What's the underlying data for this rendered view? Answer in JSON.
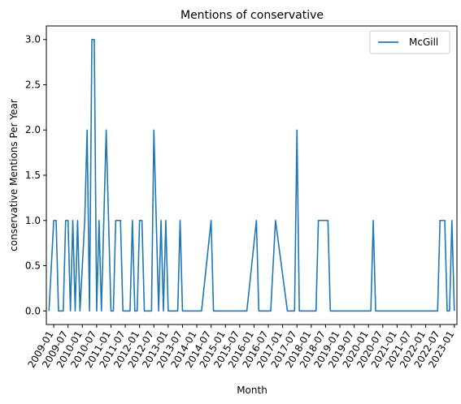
{
  "chart_data": {
    "type": "line",
    "title": "Mentions of conservative",
    "xlabel": "Month",
    "ylabel": "conservative Mentions Per Year",
    "ylim": [
      -0.15,
      3.15
    ],
    "yticks": [
      "0.0",
      "0.5",
      "1.0",
      "1.5",
      "2.0",
      "2.5",
      "3.0"
    ],
    "xticks": [
      "2009-01",
      "2009-07",
      "2010-01",
      "2010-07",
      "2011-01",
      "2011-07",
      "2012-01",
      "2012-07",
      "2013-01",
      "2013-07",
      "2014-01",
      "2014-07",
      "2015-01",
      "2015-07",
      "2016-01",
      "2016-07",
      "2017-01",
      "2017-07",
      "2018-01",
      "2018-07",
      "2019-01",
      "2019-07",
      "2020-01",
      "2020-07",
      "2021-01",
      "2021-07",
      "2022-01",
      "2022-07",
      "2023-01"
    ],
    "grid": false,
    "legend_position": "top-right",
    "series": [
      {
        "name": "McGill",
        "color": "#1f77b4",
        "x": [
          "2008-11",
          "2009-01",
          "2009-02",
          "2009-03",
          "2009-05",
          "2009-06",
          "2009-07",
          "2009-08",
          "2009-09",
          "2009-10",
          "2009-11",
          "2009-12",
          "2010-02",
          "2010-03",
          "2010-04",
          "2010-05",
          "2010-06",
          "2010-07",
          "2010-08",
          "2010-09",
          "2010-10",
          "2010-11",
          "2010-12",
          "2011-01",
          "2011-02",
          "2011-03",
          "2011-05",
          "2011-06",
          "2011-07",
          "2011-08",
          "2011-09",
          "2011-10",
          "2011-11",
          "2011-12",
          "2012-01",
          "2012-02",
          "2012-03",
          "2012-04",
          "2012-05",
          "2012-06",
          "2012-07",
          "2012-08",
          "2012-09",
          "2012-10",
          "2012-11",
          "2012-12",
          "2013-01",
          "2013-02",
          "2013-03",
          "2013-04",
          "2013-05",
          "2013-06",
          "2013-07",
          "2013-08",
          "2013-09",
          "2013-10",
          "2013-11",
          "2013-12",
          "2014-01",
          "2014-02",
          "2014-03",
          "2014-07",
          "2014-08",
          "2014-09",
          "2014-10",
          "2014-11",
          "2015-10",
          "2016-02",
          "2016-03",
          "2016-04",
          "2016-05",
          "2016-06",
          "2016-07",
          "2016-08",
          "2016-10",
          "2017-03",
          "2017-04",
          "2017-05",
          "2017-06",
          "2017-07",
          "2017-08",
          "2017-09",
          "2017-10",
          "2017-11",
          "2018-01",
          "2018-02",
          "2018-03",
          "2018-04",
          "2018-08",
          "2018-09",
          "2020-02",
          "2020-03",
          "2020-04",
          "2020-05",
          "2022-06",
          "2022-07",
          "2022-09",
          "2022-10",
          "2022-11",
          "2022-12",
          "2023-01"
        ],
        "y": [
          0,
          1,
          1,
          0,
          0,
          1,
          1,
          0,
          1,
          0,
          1,
          0,
          1,
          2,
          0,
          3,
          3,
          0,
          1,
          0,
          1,
          2,
          1,
          0,
          0,
          1,
          1,
          0,
          0,
          0,
          0,
          1,
          0,
          0,
          1,
          1,
          0,
          0,
          0,
          0,
          2,
          1,
          0,
          1,
          0,
          1,
          0,
          0,
          0,
          0,
          0,
          1,
          0,
          0,
          0,
          0,
          0,
          0,
          0,
          0,
          0,
          1,
          0,
          0,
          0,
          0,
          0,
          1,
          0,
          0,
          0,
          0,
          0,
          0,
          1,
          0,
          0,
          0,
          0,
          2,
          0,
          0,
          0,
          0,
          0,
          0,
          0,
          1,
          1,
          0,
          0,
          1,
          0,
          0,
          0,
          1,
          1,
          0,
          0,
          1,
          0
        ]
      }
    ]
  }
}
